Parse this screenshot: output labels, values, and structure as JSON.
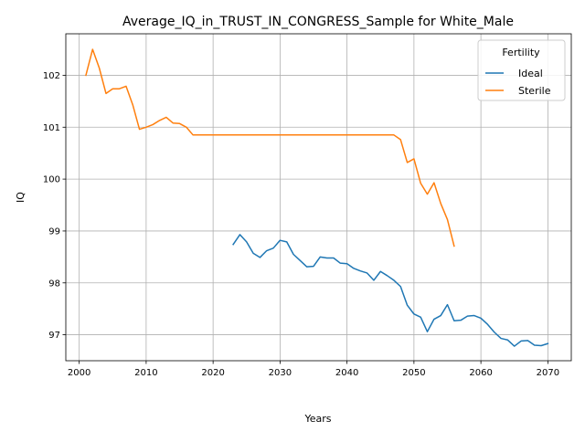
{
  "chart_data": {
    "type": "line",
    "title": "Average_IQ_in_TRUST_IN_CONGRESS_Sample for White_Male",
    "xlabel": "Years",
    "ylabel": "IQ",
    "xlim": [
      1998,
      2073.5
    ],
    "ylim": [
      96.5,
      102.8
    ],
    "xticks": [
      2000,
      2010,
      2020,
      2030,
      2040,
      2050,
      2060,
      2070
    ],
    "yticks": [
      97,
      98,
      99,
      100,
      101,
      102
    ],
    "grid": true,
    "legend": {
      "title": "Fertility",
      "position": "top-right"
    },
    "series": [
      {
        "name": "Ideal",
        "color": "#1f77b4",
        "x": [
          2023,
          2024,
          2025,
          2026,
          2027,
          2028,
          2029,
          2030,
          2031,
          2032,
          2033,
          2034,
          2035,
          2036,
          2037,
          2038,
          2039,
          2040,
          2041,
          2042,
          2043,
          2044,
          2045,
          2046,
          2047,
          2048,
          2049,
          2050,
          2051,
          2052,
          2053,
          2054,
          2055,
          2056,
          2057,
          2058,
          2059,
          2060,
          2061,
          2062,
          2063,
          2064,
          2065,
          2066,
          2067,
          2068,
          2069,
          2070
        ],
        "y": [
          98.74,
          98.93,
          98.79,
          98.57,
          98.49,
          98.62,
          98.67,
          98.82,
          98.79,
          98.55,
          98.43,
          98.31,
          98.32,
          98.5,
          98.48,
          98.48,
          98.38,
          98.37,
          98.28,
          98.23,
          98.19,
          98.05,
          98.22,
          98.14,
          98.05,
          97.93,
          97.57,
          97.4,
          97.34,
          97.06,
          97.3,
          97.37,
          97.58,
          97.27,
          97.28,
          97.36,
          97.37,
          97.32,
          97.2,
          97.05,
          96.93,
          96.9,
          96.78,
          96.88,
          96.89,
          96.8,
          96.79,
          96.83
        ]
      },
      {
        "name": "Sterile",
        "color": "#ff7f0e",
        "x": [
          2001,
          2002,
          2003,
          2004,
          2005,
          2006,
          2007,
          2008,
          2009,
          2010,
          2011,
          2012,
          2013,
          2014,
          2015,
          2016,
          2017,
          2018,
          2019,
          2020,
          2021,
          2022,
          2023,
          2024,
          2025,
          2026,
          2027,
          2028,
          2029,
          2030,
          2031,
          2032,
          2033,
          2034,
          2035,
          2036,
          2037,
          2038,
          2039,
          2040,
          2041,
          2042,
          2043,
          2044,
          2045,
          2046,
          2047,
          2048,
          2049,
          2050,
          2051,
          2052,
          2053,
          2054,
          2055,
          2056
        ],
        "y": [
          102.0,
          102.5,
          102.14,
          101.65,
          101.74,
          101.74,
          101.79,
          101.43,
          100.96,
          101.0,
          101.05,
          101.13,
          101.19,
          101.08,
          101.07,
          101.0,
          100.85,
          100.85,
          100.85,
          100.85,
          100.85,
          100.85,
          100.85,
          100.85,
          100.85,
          100.85,
          100.85,
          100.85,
          100.85,
          100.85,
          100.85,
          100.85,
          100.85,
          100.85,
          100.85,
          100.85,
          100.85,
          100.85,
          100.85,
          100.85,
          100.85,
          100.85,
          100.85,
          100.85,
          100.85,
          100.85,
          100.85,
          100.76,
          100.32,
          100.39,
          99.92,
          99.71,
          99.93,
          99.53,
          99.22,
          98.71
        ]
      }
    ]
  }
}
